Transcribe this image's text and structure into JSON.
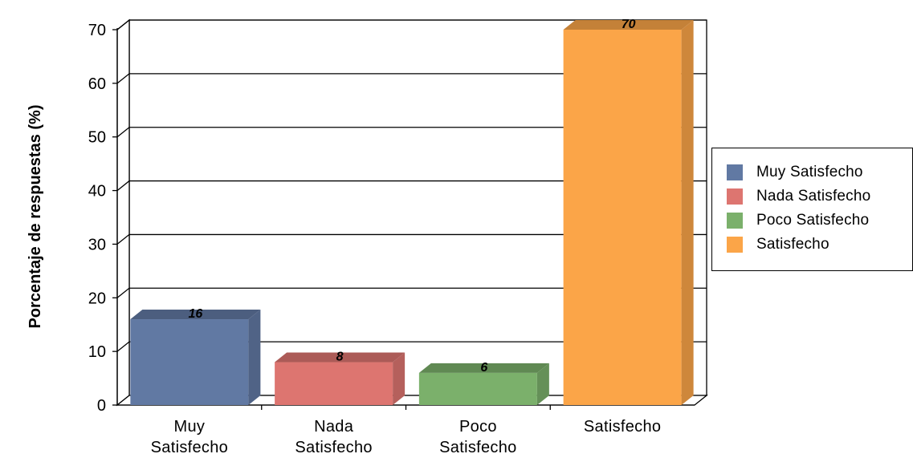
{
  "chart_data": {
    "type": "bar",
    "ylabel": "Porcentaje de respuestas (%)",
    "xlabel": "",
    "ylim": [
      0,
      70
    ],
    "yticks": [
      0,
      10,
      20,
      30,
      40,
      50,
      60,
      70
    ],
    "grid": true,
    "legend_position": "right",
    "categories": [
      "Muy Satisfecho",
      "Nada Satisfecho",
      "Poco Satisfecho",
      "Satisfecho"
    ],
    "category_label_lines": [
      [
        "Muy",
        "Satisfecho"
      ],
      [
        "Nada",
        "Satisfecho"
      ],
      [
        "Poco",
        "Satisfecho"
      ],
      [
        "Satisfecho"
      ]
    ],
    "values": [
      16,
      8,
      6,
      70
    ],
    "data_labels": [
      "16",
      "8",
      "6",
      "70"
    ],
    "colors": [
      "#6179A3",
      "#DD7570",
      "#7BB06B",
      "#FBA548"
    ],
    "legend": [
      "Muy Satisfecho",
      "Nada Satisfecho",
      "Poco Satisfecho",
      "Satisfecho"
    ]
  }
}
